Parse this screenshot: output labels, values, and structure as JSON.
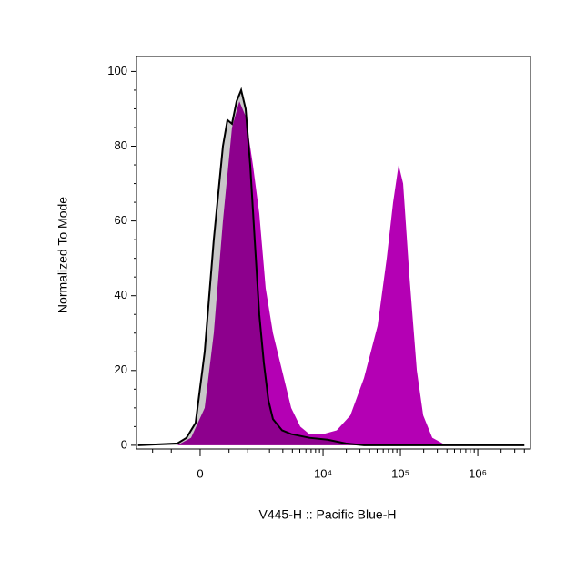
{
  "chart_data": {
    "type": "histogram-overlay",
    "x_label": "V445-H :: Pacific Blue-H",
    "y_label": "Normalized To Mode",
    "x_scale": "biexponential",
    "xlim": [
      -1677,
      4800000
    ],
    "ylim": [
      -1,
      104
    ],
    "xticks": [
      0,
      {
        "value": 10000,
        "label": "10⁴"
      },
      {
        "value": 100000,
        "label": "10⁵"
      },
      {
        "value": 1000000,
        "label": "10⁶"
      }
    ],
    "xminorticks": [
      -1000,
      -500,
      500,
      1000,
      2000,
      3000,
      4000,
      5000,
      6000,
      7000,
      8000,
      9000,
      20000,
      30000,
      40000,
      50000,
      60000,
      70000,
      80000,
      90000,
      200000,
      300000,
      400000,
      500000,
      600000,
      700000,
      800000,
      900000,
      2000000,
      3000000,
      4000000
    ],
    "yticks": [
      0,
      20,
      40,
      60,
      80,
      100
    ],
    "yminorticks": [
      5,
      10,
      15,
      25,
      30,
      35,
      45,
      50,
      55,
      65,
      70,
      75,
      85,
      90,
      95
    ],
    "series": [
      {
        "color": "#c8c8c8",
        "outline": "#000000",
        "x": [
          -1600,
          -377,
          -215,
          -70,
          70,
          215,
          377,
          467,
          566,
          676,
          798,
          932,
          1086,
          1257,
          1455,
          1679,
          1935,
          2223,
          2931,
          3860,
          6651,
          11455,
          19660,
          33850,
          4000000
        ],
        "values": [
          0,
          0.5,
          2,
          6,
          25,
          55,
          80,
          87,
          86,
          92,
          95,
          90,
          75,
          55,
          35,
          22,
          12,
          7,
          4,
          3,
          2,
          1.5,
          0.5,
          0,
          0
        ]
      },
      {
        "color": "#b400b4",
        "x": [
          -1600,
          -377,
          -141,
          70,
          215,
          377,
          566,
          748,
          932,
          1186,
          1455,
          1777,
          2223,
          2931,
          3860,
          5067,
          6651,
          9985,
          15016,
          22550,
          33850,
          50830,
          66600,
          80500,
          94800,
          108400,
          131000,
          163000,
          197000,
          258000,
          387500,
          4000000
        ],
        "values": [
          0,
          0,
          2,
          10,
          30,
          60,
          85,
          92,
          88,
          75,
          62,
          42,
          30,
          20,
          10,
          5,
          3,
          3,
          4,
          8,
          18,
          32,
          50,
          65,
          75,
          70,
          45,
          20,
          8,
          2,
          0,
          0
        ]
      }
    ]
  }
}
